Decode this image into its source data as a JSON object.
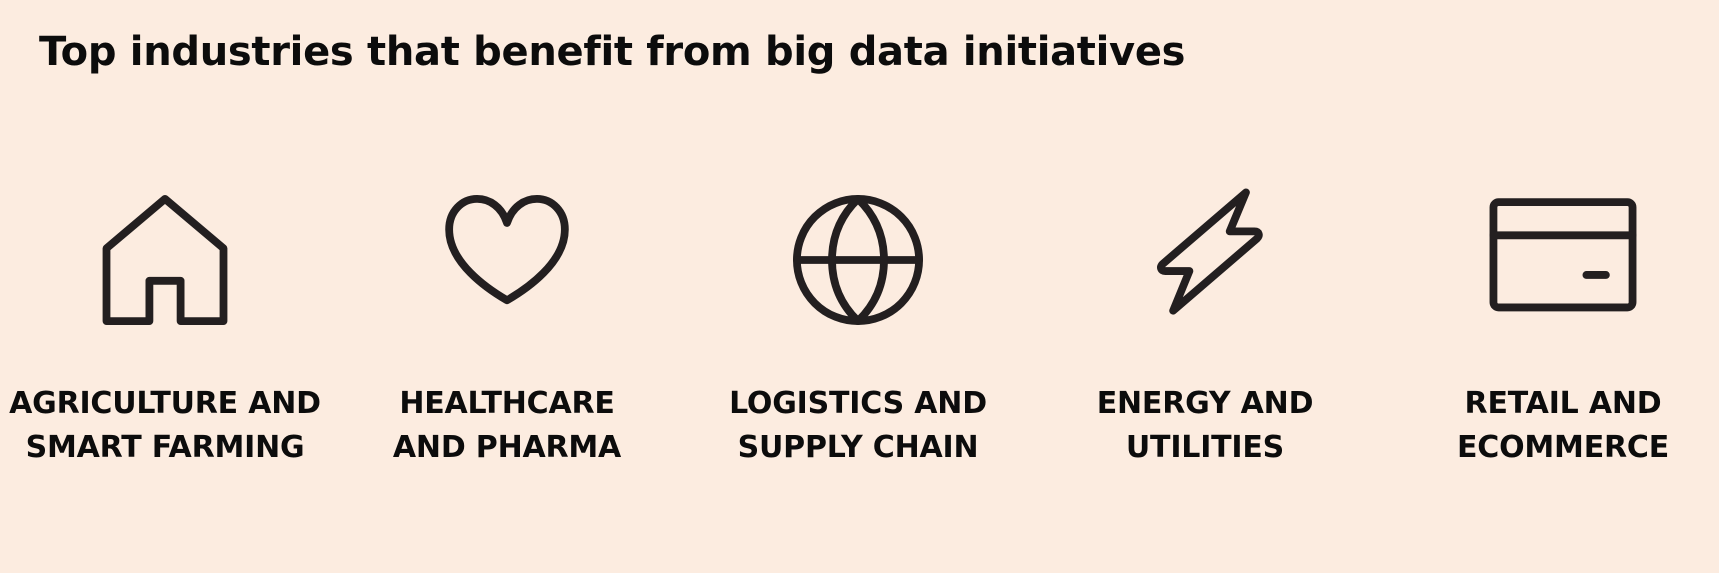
{
  "title": "Top industries that benefit from big data initiatives",
  "colors": {
    "background": "#fcece0",
    "icon_stroke": "#231f20",
    "text": "#0c0c0c"
  },
  "industries": [
    {
      "icon": "house-icon",
      "label_line1": "AGRICULTURE AND",
      "label_line2": "SMART FARMING"
    },
    {
      "icon": "heart-icon",
      "label_line1": "HEALTHCARE",
      "label_line2": "AND PHARMA"
    },
    {
      "icon": "globe-icon",
      "label_line1": "LOGISTICS AND",
      "label_line2": "SUPPLY CHAIN"
    },
    {
      "icon": "lightning-bolt-icon",
      "label_line1": "ENERGY AND",
      "label_line2": "UTILITIES"
    },
    {
      "icon": "credit-card-icon",
      "label_line1": "RETAIL AND",
      "label_line2": "ECOMMERCE"
    }
  ]
}
